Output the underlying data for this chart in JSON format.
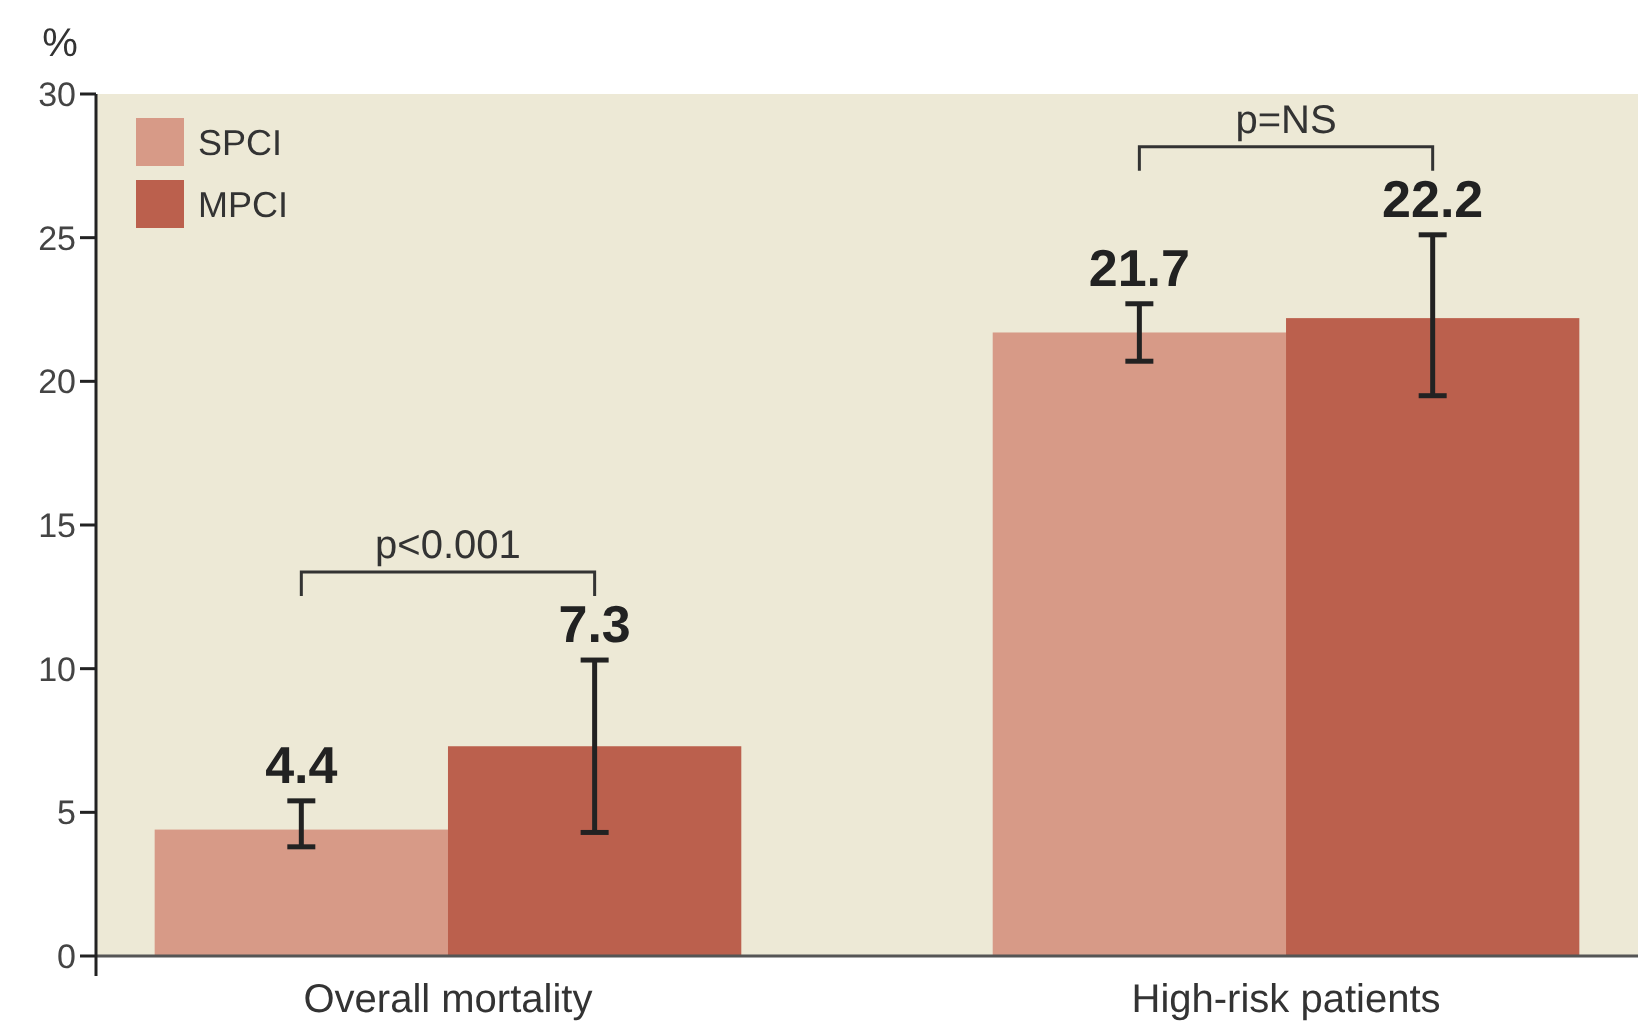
{
  "chart_data": {
    "type": "bar",
    "ylabel": "%",
    "categories": [
      "Overall mortality",
      "High-risk patients"
    ],
    "series": [
      {
        "name": "SPCI",
        "color": "#d79a87",
        "values": [
          4.4,
          21.7
        ],
        "errors": [
          [
            3.8,
            5.4
          ],
          [
            20.7,
            22.7
          ]
        ]
      },
      {
        "name": "MPCI",
        "color": "#bb604d",
        "values": [
          7.3,
          22.2
        ],
        "errors": [
          [
            4.3,
            10.3
          ],
          [
            19.5,
            25.1
          ]
        ]
      }
    ],
    "ylim": [
      0,
      30
    ],
    "yticks": [
      0,
      5,
      10,
      15,
      20,
      25,
      30
    ],
    "grid": false,
    "legend": "top left",
    "data_labels": true,
    "annotations": [
      "p<0.001",
      "p=NS"
    ]
  }
}
